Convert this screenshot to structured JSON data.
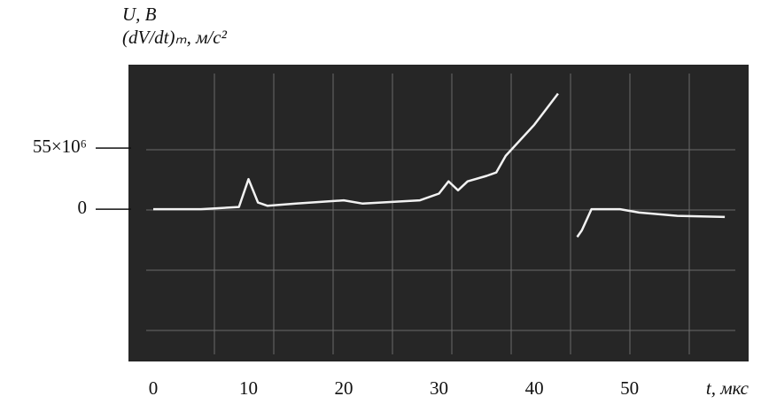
{
  "chart_data": {
    "type": "line",
    "y_label": [
      "U, В",
      "(dV/dt)ₘ, м/с²"
    ],
    "x_label": "t, мкс",
    "x": [
      0,
      5,
      9,
      10,
      11,
      12,
      15,
      20,
      22,
      28,
      30,
      31,
      32,
      33,
      35,
      36,
      37,
      40,
      42.5,
      43,
      44.5,
      45,
      46,
      49,
      51,
      55,
      60
    ],
    "values": [
      0,
      0,
      2000000,
      27000000,
      6000000,
      3000000,
      5000000,
      8000000,
      5000000,
      8000000,
      14000000,
      25000000,
      17000000,
      25000000,
      30000000,
      33000000,
      48000000,
      76000000,
      104000000,
      null,
      -25000000,
      -19000000,
      0,
      0,
      -3000000,
      -6000000,
      -7000000
    ],
    "color": "#f2f2f2",
    "xlim": [
      -2.6,
      62.5
    ],
    "xticks": [
      0,
      10,
      20,
      30,
      40,
      50
    ],
    "ylim": [
      -137000000,
      130000000
    ],
    "yticks": [
      0,
      {
        "value": 55000000,
        "label": "55×10⁶"
      }
    ]
  }
}
